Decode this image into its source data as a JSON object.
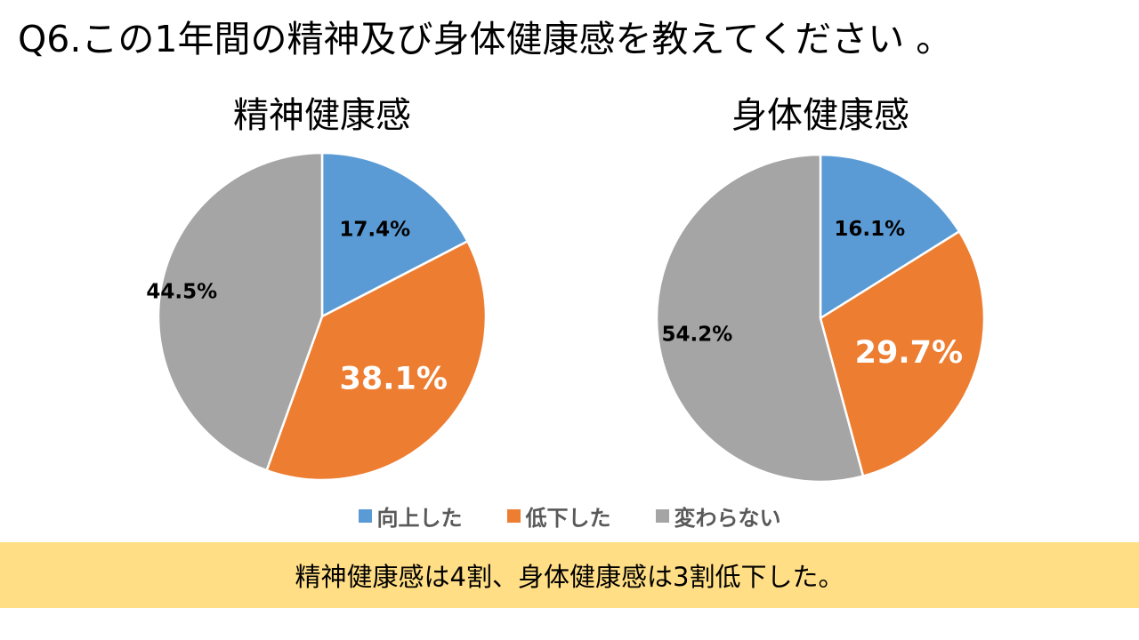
{
  "page": {
    "title": "Q6.この1年間の精神及び身体健康感を教えてください 。",
    "summary": "精神健康感は4割、身体健康感は3割低下した。"
  },
  "legend": [
    {
      "label": "向上した",
      "color": "#5b9bd5"
    },
    {
      "label": "低下した",
      "color": "#ed7d31"
    },
    {
      "label": "変わらない",
      "color": "#a5a5a5"
    }
  ],
  "chart_data": [
    {
      "type": "pie",
      "title": "精神健康感",
      "categories": [
        "向上した",
        "低下した",
        "変わらない"
      ],
      "values": [
        17.4,
        38.1,
        44.5
      ],
      "labels": [
        "17.4%",
        "38.1%",
        "44.5%"
      ],
      "colors": [
        "#5b9bd5",
        "#ed7d31",
        "#a5a5a5"
      ],
      "label_colors": [
        "#000000",
        "#ffffff",
        "#000000"
      ]
    },
    {
      "type": "pie",
      "title": "身体健康感",
      "categories": [
        "向上した",
        "低下した",
        "変わらない"
      ],
      "values": [
        16.1,
        29.7,
        54.2
      ],
      "labels": [
        "16.1%",
        "29.7%",
        "54.2%"
      ],
      "colors": [
        "#5b9bd5",
        "#ed7d31",
        "#a5a5a5"
      ],
      "label_colors": [
        "#000000",
        "#ffffff",
        "#000000"
      ]
    }
  ]
}
